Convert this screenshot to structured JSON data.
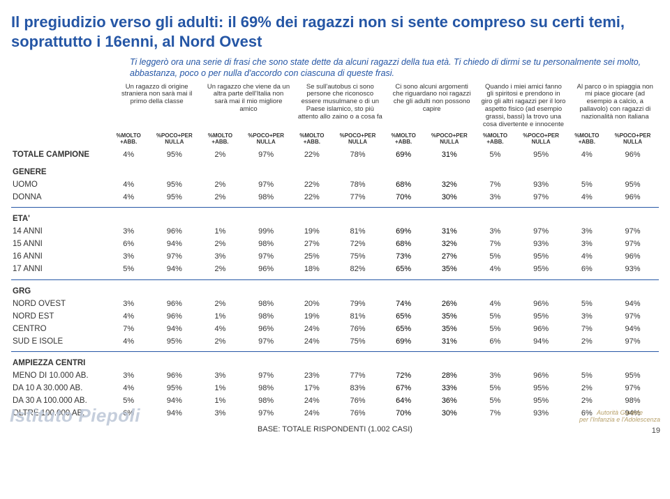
{
  "title": "Il pregiudizio verso gli adulti: il 69% dei ragazzi non si sente compreso su certi temi, soprattutto i 16enni, al Nord Ovest",
  "intro": "Ti leggerò ora una serie di frasi che sono state dette da alcuni ragazzi della tua età. Ti chiedo di dirmi se tu personalmente sei molto, abbastanza, poco o per nulla d'accordo con ciascuna di queste frasi.",
  "questions": [
    "Un ragazzo di origine straniera non sarà mai il primo della classe",
    "Un ragazzo che viene da un altra parte dell'Italia non sarà mai il mio migliore amico",
    "Se sull'autobus ci sono persone che riconosco essere musulmane o di un Paese islamico, sto più attento allo zaino o a cosa fa",
    "Ci sono alcuni argomenti che riguardano noi ragazzi che gli adulti non possono capire",
    "Quando i miei amici fanno gli spiritosi e prendono in giro gli altri ragazzi per il loro aspetto fisico (ad esempio grassi, bassi) la trovo una cosa divertente e innocente",
    "Al parco o in spiaggia non mi piace giocare (ad esempio a calcio, a pallavolo) con ragazzi di nazionalità non italiana"
  ],
  "subheads": [
    "%MOLTO +ABB.",
    "%POCO+PER NULLA"
  ],
  "boldCols": [
    6,
    7
  ],
  "sections": [
    {
      "rows": [
        {
          "label": "TOTALE CAMPIONE",
          "vals": [
            "4%",
            "95%",
            "2%",
            "97%",
            "22%",
            "78%",
            "69%",
            "31%",
            "5%",
            "95%",
            "4%",
            "96%"
          ],
          "total": true
        }
      ]
    },
    {
      "header": "GENERE",
      "rows": [
        {
          "label": "UOMO",
          "vals": [
            "4%",
            "95%",
            "2%",
            "97%",
            "22%",
            "78%",
            "68%",
            "32%",
            "7%",
            "93%",
            "5%",
            "95%"
          ]
        },
        {
          "label": "DONNA",
          "vals": [
            "4%",
            "95%",
            "2%",
            "98%",
            "22%",
            "77%",
            "70%",
            "30%",
            "3%",
            "97%",
            "4%",
            "96%"
          ]
        }
      ],
      "dividerAfter": true
    },
    {
      "header": "ETA'",
      "rows": [
        {
          "label": "14 ANNI",
          "vals": [
            "3%",
            "96%",
            "1%",
            "99%",
            "19%",
            "81%",
            "69%",
            "31%",
            "3%",
            "97%",
            "3%",
            "97%"
          ]
        },
        {
          "label": "15 ANNI",
          "vals": [
            "6%",
            "94%",
            "2%",
            "98%",
            "27%",
            "72%",
            "68%",
            "32%",
            "7%",
            "93%",
            "3%",
            "97%"
          ]
        },
        {
          "label": "16 ANNI",
          "vals": [
            "3%",
            "97%",
            "3%",
            "97%",
            "25%",
            "75%",
            "73%",
            "27%",
            "5%",
            "95%",
            "4%",
            "96%"
          ]
        },
        {
          "label": "17 ANNI",
          "vals": [
            "5%",
            "94%",
            "2%",
            "96%",
            "18%",
            "82%",
            "65%",
            "35%",
            "4%",
            "95%",
            "6%",
            "93%"
          ]
        }
      ],
      "dividerAfter": true
    },
    {
      "header": "GRG",
      "rows": [
        {
          "label": "NORD OVEST",
          "vals": [
            "3%",
            "96%",
            "2%",
            "98%",
            "20%",
            "79%",
            "74%",
            "26%",
            "4%",
            "96%",
            "5%",
            "94%"
          ]
        },
        {
          "label": "NORD EST",
          "vals": [
            "4%",
            "96%",
            "1%",
            "98%",
            "19%",
            "81%",
            "65%",
            "35%",
            "5%",
            "95%",
            "3%",
            "97%"
          ]
        },
        {
          "label": "CENTRO",
          "vals": [
            "7%",
            "94%",
            "4%",
            "96%",
            "24%",
            "76%",
            "65%",
            "35%",
            "5%",
            "96%",
            "7%",
            "94%"
          ]
        },
        {
          "label": "SUD E ISOLE",
          "vals": [
            "4%",
            "95%",
            "2%",
            "97%",
            "24%",
            "75%",
            "69%",
            "31%",
            "6%",
            "94%",
            "2%",
            "97%"
          ]
        }
      ],
      "dividerAfter": true
    },
    {
      "header": "AMPIEZZA CENTRI",
      "rows": [
        {
          "label": "MENO DI 10.000 AB.",
          "vals": [
            "3%",
            "96%",
            "3%",
            "97%",
            "23%",
            "77%",
            "72%",
            "28%",
            "3%",
            "96%",
            "5%",
            "95%"
          ]
        },
        {
          "label": "DA 10 A 30.000 AB.",
          "vals": [
            "4%",
            "95%",
            "1%",
            "98%",
            "17%",
            "83%",
            "67%",
            "33%",
            "5%",
            "95%",
            "2%",
            "97%"
          ]
        },
        {
          "label": "DA 30 A 100.000 AB.",
          "vals": [
            "5%",
            "94%",
            "1%",
            "98%",
            "24%",
            "76%",
            "64%",
            "36%",
            "5%",
            "95%",
            "2%",
            "98%"
          ]
        },
        {
          "label": "OLTRE 100.000 AB.",
          "vals": [
            "6%",
            "94%",
            "3%",
            "97%",
            "24%",
            "76%",
            "70%",
            "30%",
            "7%",
            "93%",
            "6%",
            "94%"
          ]
        }
      ]
    }
  ],
  "footer": "BASE: TOTALE RISPONDENTI (1.002 CASI)",
  "watermark": "Istituto Piepoli",
  "logoRight": "Autorità Garante\nper l'Infanzia e l'Adolescenza",
  "pageNumber": "19",
  "colors": {
    "accent": "#2556a5",
    "text": "#333333",
    "wm": "#bfc9d9",
    "logo": "#b7a06a"
  }
}
